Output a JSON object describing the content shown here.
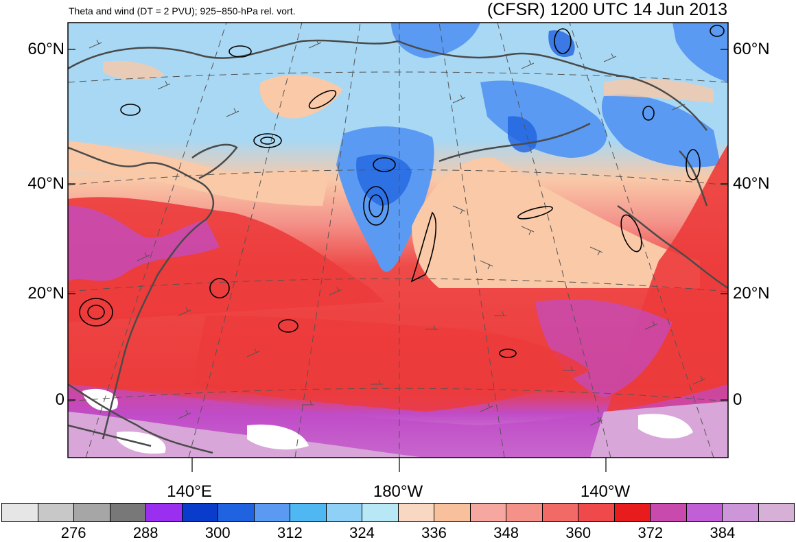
{
  "header": {
    "subtitle": "Theta and wind (DT = 2 PVU); 925−850-hPa rel. vort.",
    "title": "(CFSR) 1200 UTC 14 Jun 2013"
  },
  "map": {
    "lat_labels_left": [
      "60°N",
      "40°N",
      "20°N",
      "0"
    ],
    "lat_labels_right": [
      "60°N",
      "40°N",
      "20°N",
      "0"
    ],
    "lon_labels": [
      "140°E",
      "180°W",
      "140°W"
    ],
    "colors": {
      "cold_blue": "#1f63e0",
      "mid_blue": "#5a9af2",
      "light_blue": "#a8d8f4",
      "peach": "#f9c9a8",
      "salmon": "#f4928a",
      "red": "#ec3b3b",
      "magenta": "#c04cc8",
      "lavender": "#d8a6d8",
      "coast": "#444444",
      "contour": "#000000"
    }
  },
  "colorbar": {
    "colors": [
      "#e6e6e6",
      "#c8c8c8",
      "#a6a6a6",
      "#787878",
      "#9b2ff0",
      "#0a3ccc",
      "#1f63e0",
      "#5a9af2",
      "#4fb8f2",
      "#8fd0f6",
      "#b8e8f6",
      "#f9d8c3",
      "#f9c09e",
      "#f6a8a0",
      "#f4928a",
      "#f26a66",
      "#f0494c",
      "#e81c1c",
      "#c84aac",
      "#c160d6",
      "#cc96d8",
      "#d6b0d6"
    ],
    "labels": [
      "276",
      "288",
      "300",
      "312",
      "324",
      "336",
      "348",
      "360",
      "372",
      "384"
    ]
  }
}
